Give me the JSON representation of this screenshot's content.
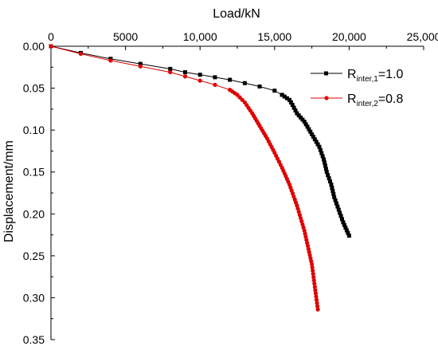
{
  "chart_data": {
    "type": "line",
    "xlabel": "Load/kN",
    "ylabel": "Displacement/mm",
    "x_axis_position": "top",
    "y_axis_inverted": true,
    "xlim": [
      0,
      25000
    ],
    "ylim": [
      0,
      0.35
    ],
    "x_ticks": [
      0,
      5000,
      10000,
      15000,
      20000,
      25000
    ],
    "x_tick_labels": [
      "0",
      "5000",
      "10,000",
      "15,000",
      "20,000",
      "25,000"
    ],
    "y_ticks": [
      0,
      0.05,
      0.1,
      0.15,
      0.2,
      0.25,
      0.3,
      0.35
    ],
    "y_tick_labels": [
      "0.00",
      "0.05",
      "0.10",
      "0.15",
      "0.20",
      "0.25",
      "0.30",
      "0.35"
    ],
    "grid": false,
    "legend_placement": "top-right",
    "series": [
      {
        "name": "Rinter,1=1.0",
        "legend_main": "R",
        "legend_sub": "inter,1",
        "legend_tail": "=1.0",
        "color": "#000000",
        "marker": "square",
        "points": [
          [
            0,
            0.0
          ],
          [
            2000,
            0.008
          ],
          [
            4000,
            0.015
          ],
          [
            6000,
            0.021
          ],
          [
            8000,
            0.027
          ],
          [
            9000,
            0.031
          ],
          [
            10000,
            0.034
          ],
          [
            11000,
            0.037
          ],
          [
            12000,
            0.04
          ],
          [
            13000,
            0.044
          ],
          [
            14000,
            0.048
          ],
          [
            15000,
            0.053
          ],
          [
            15500,
            0.058
          ],
          [
            16000,
            0.064
          ],
          [
            16200,
            0.07
          ],
          [
            16500,
            0.08
          ],
          [
            17000,
            0.09
          ],
          [
            17500,
            0.105
          ],
          [
            18000,
            0.12
          ],
          [
            18300,
            0.135
          ],
          [
            18500,
            0.15
          ],
          [
            18800,
            0.165
          ],
          [
            19000,
            0.18
          ],
          [
            19300,
            0.195
          ],
          [
            19600,
            0.21
          ],
          [
            20000,
            0.226
          ]
        ]
      },
      {
        "name": "Rinter,2=0.8",
        "legend_main": "R",
        "legend_sub": "inter,2",
        "legend_tail": "=0.8",
        "color": "#e00000",
        "marker": "circle",
        "points": [
          [
            0,
            0.0
          ],
          [
            2000,
            0.009
          ],
          [
            4000,
            0.017
          ],
          [
            6000,
            0.024
          ],
          [
            8000,
            0.031
          ],
          [
            9000,
            0.036
          ],
          [
            10000,
            0.041
          ],
          [
            11000,
            0.046
          ],
          [
            12000,
            0.052
          ],
          [
            12500,
            0.058
          ],
          [
            13000,
            0.067
          ],
          [
            13500,
            0.08
          ],
          [
            14000,
            0.095
          ],
          [
            14500,
            0.11
          ],
          [
            15000,
            0.127
          ],
          [
            15500,
            0.145
          ],
          [
            16000,
            0.165
          ],
          [
            16500,
            0.19
          ],
          [
            17000,
            0.22
          ],
          [
            17500,
            0.26
          ],
          [
            17900,
            0.314
          ]
        ]
      }
    ]
  }
}
